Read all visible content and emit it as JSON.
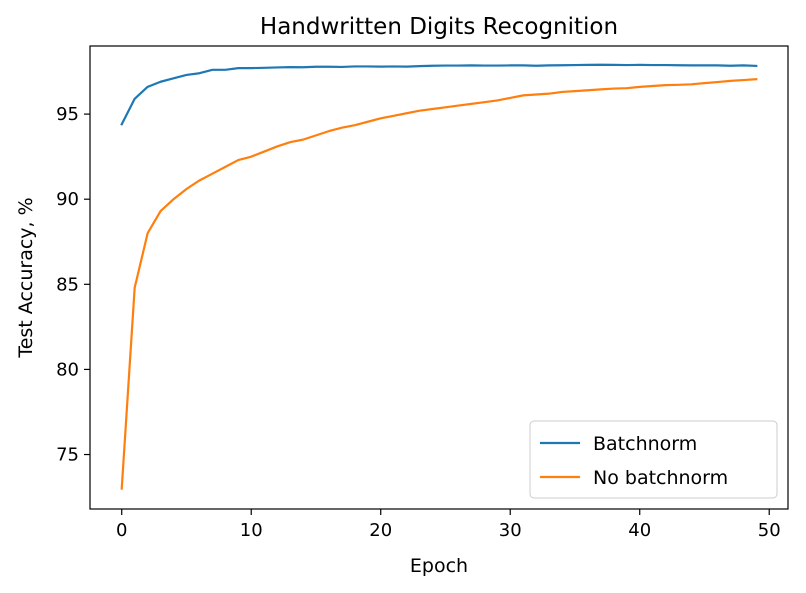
{
  "chart_data": {
    "type": "line",
    "title": "Handwritten Digits Recognition",
    "xlabel": "Epoch",
    "ylabel": "Test Accuracy, %",
    "xlim": [
      -2.45,
      51.45
    ],
    "ylim": [
      71.8,
      99.0
    ],
    "xticks": [
      0,
      10,
      20,
      30,
      40,
      50
    ],
    "yticks": [
      75,
      80,
      85,
      90,
      95
    ],
    "grid": false,
    "legend_position": "lower-right",
    "x": [
      0,
      1,
      2,
      3,
      4,
      5,
      6,
      7,
      8,
      9,
      10,
      11,
      12,
      13,
      14,
      15,
      16,
      17,
      18,
      19,
      20,
      21,
      22,
      23,
      24,
      25,
      26,
      27,
      28,
      29,
      30,
      31,
      32,
      33,
      34,
      35,
      36,
      37,
      38,
      39,
      40,
      41,
      42,
      43,
      44,
      45,
      46,
      47,
      48,
      49
    ],
    "series": [
      {
        "name": "Batchnorm",
        "color": "#1f77b4",
        "values": [
          94.4,
          95.9,
          96.6,
          96.9,
          97.1,
          97.3,
          97.4,
          97.6,
          97.6,
          97.7,
          97.7,
          97.72,
          97.74,
          97.76,
          97.75,
          97.78,
          97.78,
          97.77,
          97.8,
          97.8,
          97.79,
          97.8,
          97.79,
          97.82,
          97.84,
          97.85,
          97.85,
          97.86,
          97.85,
          97.85,
          97.86,
          97.86,
          97.84,
          97.86,
          97.87,
          97.88,
          97.89,
          97.9,
          97.89,
          97.88,
          97.89,
          97.88,
          97.88,
          97.87,
          97.86,
          97.86,
          97.86,
          97.84,
          97.86,
          97.83
        ]
      },
      {
        "name": "No batchnorm",
        "color": "#ff7f0e",
        "values": [
          73.0,
          84.8,
          88.0,
          89.3,
          90.0,
          90.6,
          91.1,
          91.5,
          91.9,
          92.3,
          92.5,
          92.8,
          93.1,
          93.35,
          93.5,
          93.75,
          94.0,
          94.2,
          94.35,
          94.55,
          94.75,
          94.9,
          95.05,
          95.2,
          95.3,
          95.4,
          95.5,
          95.6,
          95.7,
          95.8,
          95.95,
          96.1,
          96.15,
          96.2,
          96.3,
          96.35,
          96.4,
          96.45,
          96.5,
          96.52,
          96.6,
          96.65,
          96.7,
          96.72,
          96.75,
          96.82,
          96.88,
          96.95,
          97.0,
          97.05
        ]
      }
    ]
  }
}
